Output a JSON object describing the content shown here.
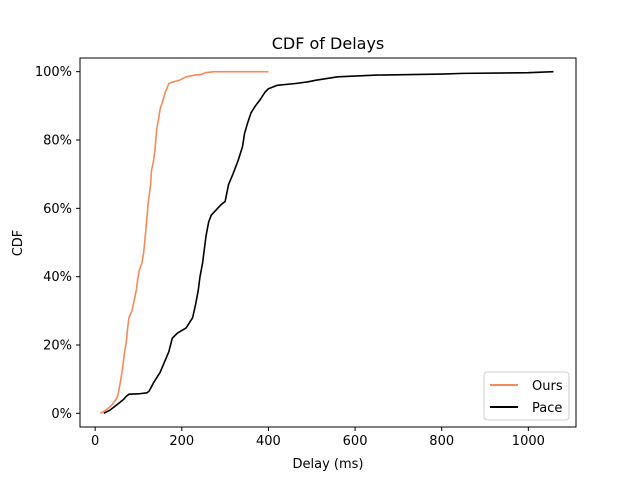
{
  "chart_data": {
    "type": "line",
    "title": "CDF of Delays",
    "xlabel": "Delay (ms)",
    "ylabel": "CDF",
    "xlim": [
      -35,
      1110
    ],
    "ylim": [
      -0.04,
      1.04
    ],
    "x_ticks": [
      0,
      200,
      400,
      600,
      800,
      1000
    ],
    "y_ticks": [
      0,
      0.2,
      0.4,
      0.6,
      0.8,
      1.0
    ],
    "x_tick_labels": [
      "0",
      "200",
      "400",
      "600",
      "800",
      "1000"
    ],
    "y_tick_labels": [
      "0%",
      "20%",
      "40%",
      "60%",
      "80%",
      "100%"
    ],
    "grid": false,
    "legend_position": "lower right",
    "series": [
      {
        "name": "Ours",
        "color": "#f58a5a",
        "points": [
          [
            12,
            0.0
          ],
          [
            25,
            0.01
          ],
          [
            35,
            0.02
          ],
          [
            42,
            0.03
          ],
          [
            48,
            0.04
          ],
          [
            52,
            0.05
          ],
          [
            55,
            0.07
          ],
          [
            58,
            0.09
          ],
          [
            62,
            0.12
          ],
          [
            65,
            0.15
          ],
          [
            68,
            0.18
          ],
          [
            72,
            0.21
          ],
          [
            75,
            0.25
          ],
          [
            78,
            0.28
          ],
          [
            85,
            0.3
          ],
          [
            90,
            0.33
          ],
          [
            95,
            0.36
          ],
          [
            98,
            0.39
          ],
          [
            102,
            0.42
          ],
          [
            108,
            0.44
          ],
          [
            112,
            0.47
          ],
          [
            115,
            0.51
          ],
          [
            118,
            0.55
          ],
          [
            120,
            0.58
          ],
          [
            122,
            0.61
          ],
          [
            125,
            0.64
          ],
          [
            128,
            0.67
          ],
          [
            130,
            0.71
          ],
          [
            135,
            0.74
          ],
          [
            138,
            0.77
          ],
          [
            140,
            0.8
          ],
          [
            142,
            0.83
          ],
          [
            146,
            0.86
          ],
          [
            150,
            0.89
          ],
          [
            155,
            0.91
          ],
          [
            162,
            0.94
          ],
          [
            170,
            0.965
          ],
          [
            180,
            0.97
          ],
          [
            195,
            0.975
          ],
          [
            210,
            0.985
          ],
          [
            230,
            0.99
          ],
          [
            245,
            0.992
          ],
          [
            255,
            0.997
          ],
          [
            275,
            1.0
          ],
          [
            400,
            1.0
          ]
        ]
      },
      {
        "name": "Pace",
        "color": "#000000",
        "points": [
          [
            20,
            0.0
          ],
          [
            35,
            0.01
          ],
          [
            45,
            0.02
          ],
          [
            55,
            0.03
          ],
          [
            65,
            0.04
          ],
          [
            72,
            0.05
          ],
          [
            78,
            0.056
          ],
          [
            100,
            0.057
          ],
          [
            120,
            0.06
          ],
          [
            125,
            0.066
          ],
          [
            135,
            0.09
          ],
          [
            150,
            0.12
          ],
          [
            160,
            0.15
          ],
          [
            170,
            0.18
          ],
          [
            178,
            0.22
          ],
          [
            190,
            0.235
          ],
          [
            210,
            0.25
          ],
          [
            225,
            0.28
          ],
          [
            232,
            0.32
          ],
          [
            238,
            0.36
          ],
          [
            242,
            0.4
          ],
          [
            248,
            0.44
          ],
          [
            252,
            0.48
          ],
          [
            256,
            0.52
          ],
          [
            262,
            0.56
          ],
          [
            268,
            0.58
          ],
          [
            290,
            0.61
          ],
          [
            300,
            0.62
          ],
          [
            308,
            0.67
          ],
          [
            318,
            0.7
          ],
          [
            330,
            0.74
          ],
          [
            340,
            0.78
          ],
          [
            345,
            0.82
          ],
          [
            352,
            0.85
          ],
          [
            360,
            0.88
          ],
          [
            370,
            0.9
          ],
          [
            382,
            0.92
          ],
          [
            392,
            0.94
          ],
          [
            400,
            0.95
          ],
          [
            420,
            0.96
          ],
          [
            460,
            0.965
          ],
          [
            490,
            0.97
          ],
          [
            510,
            0.975
          ],
          [
            560,
            0.985
          ],
          [
            650,
            0.99
          ],
          [
            800,
            0.993
          ],
          [
            850,
            0.995
          ],
          [
            1000,
            0.997
          ],
          [
            1058,
            1.0
          ]
        ]
      }
    ]
  }
}
